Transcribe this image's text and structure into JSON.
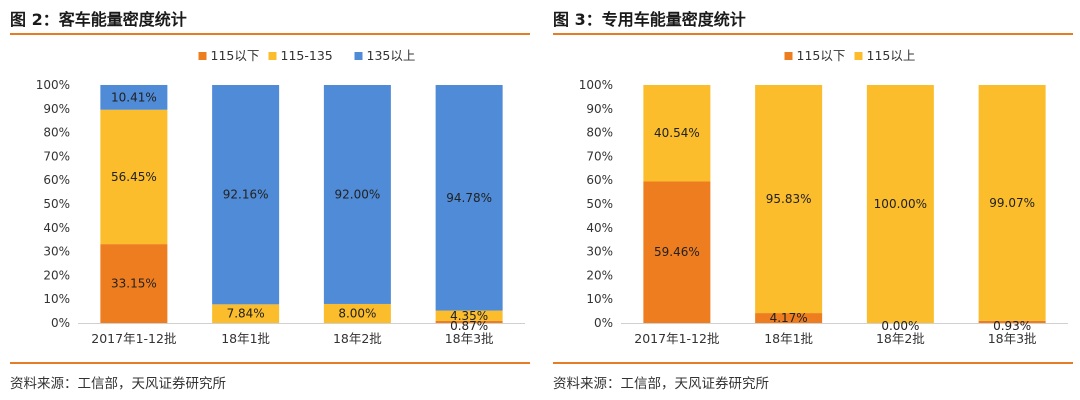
{
  "colors": {
    "orange": "#ee7d1f",
    "yellow": "#fbbd2c",
    "blue": "#4f8bd6",
    "rule": "#e57d26"
  },
  "source_text": "资料来源：工信部，天风证券研究所",
  "chart_data": [
    {
      "type": "bar",
      "stacked": true,
      "title": "图 2：客车能量密度统计",
      "categories": [
        "2017年1-12批",
        "18年1批",
        "18年2批",
        "18年3批"
      ],
      "series": [
        {
          "name": "115以下",
          "color": "#ee7d1f",
          "values": [
            33.15,
            0,
            0,
            0.87
          ],
          "labels": [
            "33.15%",
            "",
            "",
            "0.87%"
          ]
        },
        {
          "name": "115-135",
          "color": "#fbbd2c",
          "values": [
            56.45,
            7.84,
            8.0,
            4.35
          ],
          "labels": [
            "56.45%",
            "7.84%",
            "8.00%",
            "4.35%"
          ]
        },
        {
          "name": "135以上",
          "color": "#4f8bd6",
          "values": [
            10.41,
            92.16,
            92.0,
            94.78
          ],
          "labels": [
            "10.41%",
            "92.16%",
            "92.00%",
            "94.78%"
          ]
        }
      ],
      "yticks": [
        "0%",
        "10%",
        "20%",
        "30%",
        "40%",
        "50%",
        "60%",
        "70%",
        "80%",
        "90%",
        "100%"
      ],
      "ylim": [
        0,
        100
      ],
      "legend": "top"
    },
    {
      "type": "bar",
      "stacked": true,
      "title": "图 3：专用车能量密度统计",
      "categories": [
        "2017年1-12批",
        "18年1批",
        "18年2批",
        "18年3批"
      ],
      "series": [
        {
          "name": "115以下",
          "color": "#ee7d1f",
          "values": [
            59.46,
            4.17,
            0.0,
            0.93
          ],
          "labels": [
            "59.46%",
            "4.17%",
            "0.00%",
            "0.93%"
          ]
        },
        {
          "name": "115以上",
          "color": "#fbbd2c",
          "values": [
            40.54,
            95.83,
            100.0,
            99.07
          ],
          "labels": [
            "40.54%",
            "95.83%",
            "100.00%",
            "99.07%"
          ]
        }
      ],
      "yticks": [
        "0%",
        "10%",
        "20%",
        "30%",
        "40%",
        "50%",
        "60%",
        "70%",
        "80%",
        "90%",
        "100%"
      ],
      "ylim": [
        0,
        100
      ],
      "legend": "top"
    }
  ]
}
